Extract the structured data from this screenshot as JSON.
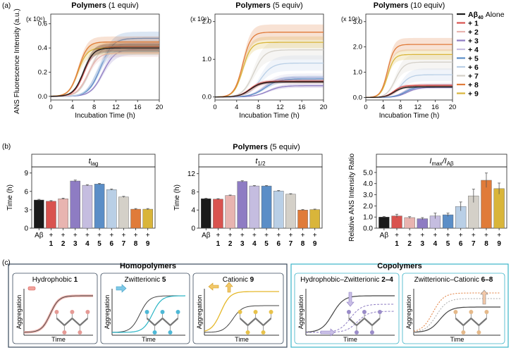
{
  "panel_labels": {
    "a": "(a)",
    "b": "(b)",
    "c": "(c)"
  },
  "colors": {
    "s0": "#1a1a1a",
    "s1": "#d9534f",
    "s2": "#e8b4b0",
    "s3": "#8e7cc3",
    "s4": "#c5bde0",
    "s5": "#5b8ec7",
    "s6": "#b9cfe6",
    "s7": "#d4d0c8",
    "s8": "#e07b39",
    "s9": "#d9b53a",
    "teal": "#2bb5c5",
    "box_left": "#3a4a5c",
    "box_right": "#3bb3c8"
  },
  "chart_data": [
    {
      "type": "line",
      "title_bold": "Polymers",
      "title_rest": " (1 equiv)",
      "ylabel": "ANS Fluorescence Intensity (a.u.)",
      "y_multiplier": "(x 10⁶)",
      "xlabel": "Incubation Time (h)",
      "x_ticks": [
        "0",
        "4",
        "8",
        "12",
        "16",
        "20"
      ],
      "y_ticks": [
        "0.0",
        "0.2",
        "0.4",
        "0.6"
      ],
      "xlim": [
        0,
        20
      ],
      "ylim": [
        -0.03,
        0.68
      ],
      "series": [
        {
          "name": "Aβ40 Alone",
          "lag": 4.0,
          "k": 1.1,
          "plateau": 0.4,
          "sd": 0.03
        },
        {
          "name": "+ 1",
          "lag": 4.2,
          "k": 1.1,
          "plateau": 0.41,
          "sd": 0.03
        },
        {
          "name": "+ 2",
          "lag": 4.8,
          "k": 1.0,
          "plateau": 0.36,
          "sd": 0.03
        },
        {
          "name": "+ 3",
          "lag": 7.6,
          "k": 0.9,
          "plateau": 0.39,
          "sd": 0.04
        },
        {
          "name": "+ 4",
          "lag": 7.0,
          "k": 0.9,
          "plateau": 0.44,
          "sd": 0.05
        },
        {
          "name": "+ 5",
          "lag": 7.2,
          "k": 0.9,
          "plateau": 0.48,
          "sd": 0.05
        },
        {
          "name": "+ 6",
          "lag": 6.4,
          "k": 1.0,
          "plateau": 0.38,
          "sd": 0.04
        },
        {
          "name": "+ 7",
          "lag": 5.2,
          "k": 1.0,
          "plateau": 0.42,
          "sd": 0.04
        },
        {
          "name": "+ 8",
          "lag": 3.1,
          "k": 1.2,
          "plateau": 0.45,
          "sd": 0.04
        },
        {
          "name": "+ 9",
          "lag": 3.0,
          "k": 1.2,
          "plateau": 0.4,
          "sd": 0.05
        }
      ]
    },
    {
      "type": "line",
      "title_bold": "Polymers",
      "title_rest": " (5 equiv)",
      "y_multiplier": "(x 10⁶)",
      "xlabel": "Incubation Time (h)",
      "x_ticks": [
        "0",
        "4",
        "8",
        "12",
        "16",
        "20"
      ],
      "y_ticks": [
        "0.0",
        "1.0",
        "2.0"
      ],
      "xlim": [
        0,
        20
      ],
      "ylim": [
        -0.08,
        2.2
      ],
      "series": [
        {
          "name": "Aβ40 Alone",
          "lag": 4.5,
          "k": 1.0,
          "plateau": 0.4,
          "sd": 0.03
        },
        {
          "name": "+ 1",
          "lag": 4.4,
          "k": 1.0,
          "plateau": 0.42,
          "sd": 0.04
        },
        {
          "name": "+ 2",
          "lag": 4.9,
          "k": 1.0,
          "plateau": 0.4,
          "sd": 0.05
        },
        {
          "name": "+ 3",
          "lag": 7.7,
          "k": 0.8,
          "plateau": 0.3,
          "sd": 0.05
        },
        {
          "name": "+ 4",
          "lag": 7.0,
          "k": 0.8,
          "plateau": 0.52,
          "sd": 0.1
        },
        {
          "name": "+ 5",
          "lag": 7.2,
          "k": 0.8,
          "plateau": 0.48,
          "sd": 0.08
        },
        {
          "name": "+ 6",
          "lag": 6.3,
          "k": 0.9,
          "plateau": 0.9,
          "sd": 0.2
        },
        {
          "name": "+ 7",
          "lag": 5.1,
          "k": 1.0,
          "plateau": 1.25,
          "sd": 0.25
        },
        {
          "name": "+ 8",
          "lag": 3.1,
          "k": 1.3,
          "plateau": 1.72,
          "sd": 0.2
        },
        {
          "name": "+ 9",
          "lag": 3.1,
          "k": 1.3,
          "plateau": 1.45,
          "sd": 0.15
        }
      ]
    },
    {
      "type": "line",
      "title_bold": "Polymers",
      "title_rest": " (10 equiv)",
      "y_multiplier": "(x 10⁶)",
      "xlabel": "Incubation Time (h)",
      "x_ticks": [
        "0",
        "4",
        "8",
        "12",
        "16",
        "20"
      ],
      "y_ticks": [
        "0.0",
        "1.0",
        "2.0",
        "3.0"
      ],
      "xlim": [
        0,
        20
      ],
      "ylim": [
        -0.1,
        3.3
      ],
      "series": [
        {
          "name": "Aβ40 Alone",
          "lag": 4.5,
          "k": 1.0,
          "plateau": 0.42,
          "sd": 0.04
        },
        {
          "name": "+ 1",
          "lag": 4.4,
          "k": 1.0,
          "plateau": 0.48,
          "sd": 0.05
        },
        {
          "name": "+ 2",
          "lag": 5.0,
          "k": 1.0,
          "plateau": 0.45,
          "sd": 0.05
        },
        {
          "name": "+ 3",
          "lag": 7.5,
          "k": 0.8,
          "plateau": 0.4,
          "sd": 0.05
        },
        {
          "name": "+ 4",
          "lag": 7.0,
          "k": 0.8,
          "plateau": 0.5,
          "sd": 0.08
        },
        {
          "name": "+ 5",
          "lag": 7.2,
          "k": 0.8,
          "plateau": 0.45,
          "sd": 0.06
        },
        {
          "name": "+ 6",
          "lag": 6.0,
          "k": 0.9,
          "plateau": 0.9,
          "sd": 0.25
        },
        {
          "name": "+ 7",
          "lag": 4.8,
          "k": 1.0,
          "plateau": 1.4,
          "sd": 0.3
        },
        {
          "name": "+ 8",
          "lag": 3.0,
          "k": 1.3,
          "plateau": 2.1,
          "sd": 0.25
        },
        {
          "name": "+ 9",
          "lag": 3.0,
          "k": 1.3,
          "plateau": 1.7,
          "sd": 0.2
        }
      ]
    },
    {
      "type": "bar",
      "title": "t_lag",
      "title_main": "t",
      "title_sub": "lag",
      "ylabel": "Time (h)",
      "y_ticks": [
        "0",
        "3",
        "6",
        "9"
      ],
      "ylim": [
        0,
        10
      ],
      "categories": [
        "Aβ",
        "+ 1",
        "+ 2",
        "+ 3",
        "+ 4",
        "+ 5",
        "+ 6",
        "+ 7",
        "+ 8",
        "+ 9"
      ],
      "values": [
        4.6,
        4.4,
        4.8,
        7.7,
        7.0,
        7.2,
        6.3,
        5.1,
        3.1,
        3.1
      ],
      "errors": [
        0.1,
        0.1,
        0.1,
        0.15,
        0.1,
        0.1,
        0.1,
        0.1,
        0.1,
        0.1
      ]
    },
    {
      "type": "bar",
      "title": "t_1/2",
      "title_main": "t",
      "title_sub": "1/2",
      "ylabel": "Time (h)",
      "y_ticks": [
        "0",
        "4",
        "8",
        "12"
      ],
      "ylim": [
        0,
        13.5
      ],
      "categories": [
        "Aβ",
        "+ 1",
        "+ 2",
        "+ 3",
        "+ 4",
        "+ 5",
        "+ 6",
        "+ 7",
        "+ 8",
        "+ 9"
      ],
      "values": [
        6.5,
        6.4,
        7.2,
        10.3,
        9.3,
        9.3,
        8.2,
        7.5,
        4.0,
        4.1
      ],
      "errors": [
        0.1,
        0.1,
        0.1,
        0.15,
        0.1,
        0.1,
        0.1,
        0.1,
        0.1,
        0.1
      ]
    },
    {
      "type": "bar",
      "title": "I_max/I_Aβ",
      "ylabel": "Relative ANS Intensity Ratio",
      "y_ticks": [
        "0.0",
        "1.0",
        "2.0",
        "3.0",
        "4.0",
        "5.0"
      ],
      "ylim": [
        0,
        5.5
      ],
      "categories": [
        "Aβ",
        "+ 1",
        "+ 2",
        "+ 3",
        "+ 4",
        "+ 5",
        "+ 6",
        "+ 7",
        "+ 8",
        "+ 9"
      ],
      "values": [
        1.0,
        1.1,
        0.95,
        0.85,
        1.1,
        1.2,
        1.95,
        2.9,
        4.3,
        3.55
      ],
      "errors": [
        0.05,
        0.15,
        0.08,
        0.1,
        0.25,
        0.15,
        0.4,
        0.6,
        0.65,
        0.5
      ]
    }
  ],
  "legend": [
    {
      "label": "Aβ40 Alone",
      "main": "Aβ",
      "sub": "40",
      "rest": " Alone"
    },
    {
      "label": "+ 1",
      "main": "+ 1"
    },
    {
      "label": "+ 2",
      "main": "+ 2"
    },
    {
      "label": "+ 3",
      "main": "+ 3"
    },
    {
      "label": "+ 4",
      "main": "+ 4"
    },
    {
      "label": "+ 5",
      "main": "+ 5"
    },
    {
      "label": "+ 6",
      "main": "+ 6"
    },
    {
      "label": "+ 7",
      "main": "+ 7"
    },
    {
      "label": "+ 8",
      "main": "+ 8"
    },
    {
      "label": "+ 9",
      "main": "+ 9"
    }
  ],
  "panel_b_header": {
    "bold": "Polymers",
    "rest": " (5 equiv)"
  },
  "panel_c": {
    "homopolymers_title": "Homopolymers",
    "copolymers_title": "Copolymers",
    "axis_y": "Aggregation",
    "axis_x": "Time",
    "boxes": [
      {
        "label": "Hydrophobic ",
        "num": "1"
      },
      {
        "label": "Zwitterionic ",
        "num": "5"
      },
      {
        "label": "Cationic ",
        "num": "9"
      },
      {
        "label": "Hydrophobic–Zwitterionic ",
        "num": "2–4"
      },
      {
        "label": "Zwitterionic–Cationic ",
        "num": "6–8"
      }
    ]
  }
}
